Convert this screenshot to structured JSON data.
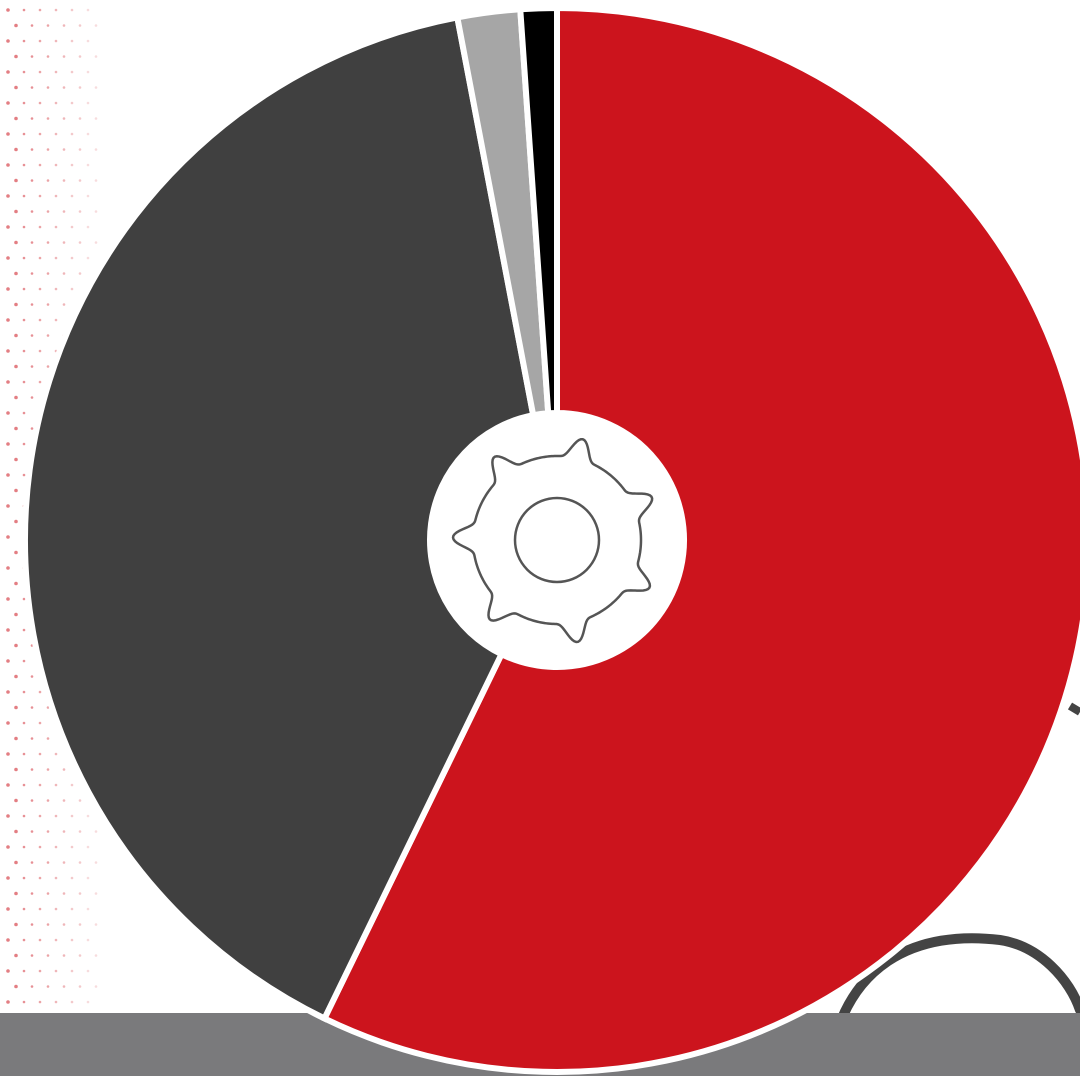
{
  "chart_data": {
    "type": "pie",
    "style": "donut",
    "title": "",
    "start": "top",
    "direction": "clockwise",
    "slice_separator_color": "#ffffff",
    "slices": [
      {
        "value": 57.2,
        "color": "#cc141d"
      },
      {
        "value": 39.8,
        "color": "#404040"
      },
      {
        "value": 1.9,
        "color": "#a6a6a6"
      },
      {
        "value": 1.1,
        "color": "#000000"
      }
    ],
    "center_icon": "gear-icon",
    "legend": "none"
  },
  "decor": {
    "dot_color": "#cc141d",
    "band_color": "#7a7a7c",
    "arc_color": "#444444"
  }
}
